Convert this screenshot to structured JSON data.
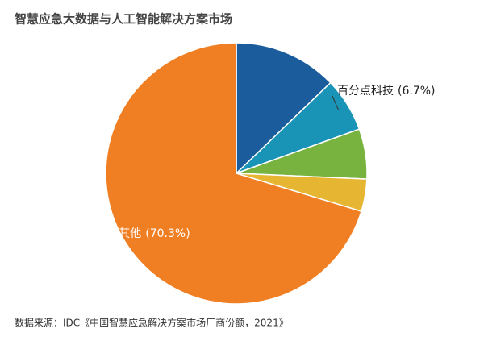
{
  "chart_data": {
    "type": "pie",
    "title": "智慧应急大数据与人工智能解决方案市场",
    "categories": [
      null,
      "百分点科技",
      null,
      null,
      "其他"
    ],
    "values": [
      12.8,
      6.7,
      6.2,
      4.0,
      70.3
    ],
    "value_labels": [
      null,
      "(6.7%)",
      null,
      null,
      "(70.3%)"
    ],
    "colors": [
      "#1b5c9c",
      "#1a94b6",
      "#79b33f",
      "#e6b632",
      "#f07f23"
    ],
    "source": "数据来源：IDC《中国智慧应急解决方案市场厂商份额，2021》"
  }
}
